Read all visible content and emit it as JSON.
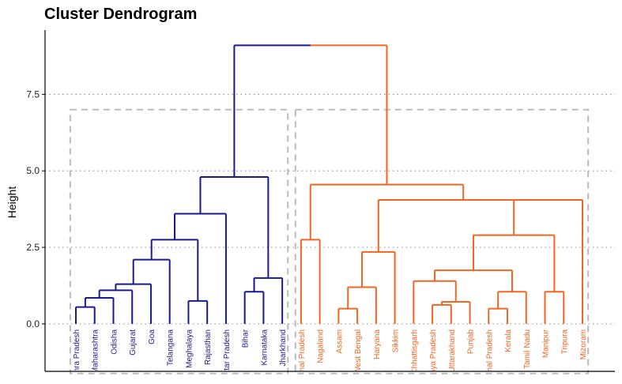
{
  "chart_data": {
    "type": "dendrogram",
    "title": "Cluster Dendrogram",
    "ylabel": "Height",
    "xlabel": "",
    "ylim": [
      -1.55,
      9.6
    ],
    "yticks": [
      0.0,
      2.5,
      5.0,
      7.5
    ],
    "ytick_labels": [
      "0.0",
      "2.5",
      "5.0",
      "7.5"
    ],
    "grid": "horizontal dotted at y ticks",
    "clusters": [
      {
        "id": 1,
        "color": "#1a1a8f",
        "leaf_range": [
          0,
          11
        ]
      },
      {
        "id": 2,
        "color": "#f26522",
        "leaf_range": [
          12,
          27
        ]
      }
    ],
    "root_color_left": "#1a1a8f",
    "root_color_right": "#f26522",
    "box_color": "#bbbbbb",
    "leaves": [
      "Andhra Pradesh",
      "Maharashtra",
      "Odisha",
      "Gujarat",
      "Goa",
      "Telangana",
      "Meghalaya",
      "Rajasthan",
      "Uttar Pradesh",
      "Bihar",
      "Karnataka",
      "Jharkhand",
      "Himachal Pradesh",
      "Nagaland",
      "Assam",
      "West Bengal",
      "Haryana",
      "Sikkim",
      "Chhattisgarh",
      "Madhya Pradesh",
      "Uttarakhand",
      "Punjab",
      "Arunachal Pradesh",
      "Kerala",
      "Tamil Nadu",
      "Manipur",
      "Tripura",
      "Mizoram"
    ],
    "merges": [
      {
        "id": "m1",
        "left": "L0",
        "right": "L1",
        "height": 0.55
      },
      {
        "id": "m2",
        "left": "m1",
        "right": "L2",
        "height": 0.85
      },
      {
        "id": "m3",
        "left": "m2",
        "right": "L3",
        "height": 1.1
      },
      {
        "id": "m4",
        "left": "m3",
        "right": "L4",
        "height": 1.3
      },
      {
        "id": "m5",
        "left": "m4",
        "right": "L5",
        "height": 2.1
      },
      {
        "id": "m6",
        "left": "L6",
        "right": "L7",
        "height": 0.75
      },
      {
        "id": "m7",
        "left": "m5",
        "right": "m6",
        "height": 2.75
      },
      {
        "id": "m8",
        "left": "m7",
        "right": "L8",
        "height": 3.6
      },
      {
        "id": "m9",
        "left": "L9",
        "right": "L10",
        "height": 1.05
      },
      {
        "id": "m10",
        "left": "m9",
        "right": "L11",
        "height": 1.5
      },
      {
        "id": "m11",
        "left": "m8",
        "right": "m10",
        "height": 4.8
      },
      {
        "id": "m12",
        "left": "L12",
        "right": "L13",
        "height": 2.75
      },
      {
        "id": "m13",
        "left": "L14",
        "right": "L15",
        "height": 0.5
      },
      {
        "id": "m14",
        "left": "m13",
        "right": "L16",
        "height": 1.2
      },
      {
        "id": "m15",
        "left": "m14",
        "right": "L17",
        "height": 2.35
      },
      {
        "id": "m16",
        "left": "L19",
        "right": "L20",
        "height": 0.62
      },
      {
        "id": "m17",
        "left": "m16",
        "right": "L21",
        "height": 0.72
      },
      {
        "id": "m18",
        "left": "L18",
        "right": "m17",
        "height": 1.4
      },
      {
        "id": "m19",
        "left": "L22",
        "right": "L23",
        "height": 0.5
      },
      {
        "id": "m20",
        "left": "m19",
        "right": "L24",
        "height": 1.05
      },
      {
        "id": "m21",
        "left": "m18",
        "right": "m20",
        "height": 1.75
      },
      {
        "id": "m22",
        "left": "L25",
        "right": "L26",
        "height": 1.05
      },
      {
        "id": "m23",
        "left": "m21",
        "right": "m22",
        "height": 2.9
      },
      {
        "id": "m24",
        "left": "m23",
        "right": "L27",
        "height": 4.05
      },
      {
        "id": "m25",
        "left": "m15",
        "right": "m24",
        "height": 4.05
      },
      {
        "id": "m26",
        "left": "m12",
        "right": "m25",
        "height": 4.55
      },
      {
        "id": "m27",
        "left": "m11",
        "right": "m26",
        "height": 9.1
      }
    ],
    "cluster_box_top": 7.0,
    "cluster_box_bottom": -1.62
  }
}
